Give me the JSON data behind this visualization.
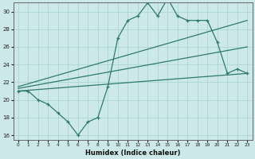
{
  "xlabel": "Humidex (Indice chaleur)",
  "bg_color": "#cce8e8",
  "line_color": "#2d7a6e",
  "grid_color": "#b0d8d8",
  "xlim": [
    -0.5,
    23.5
  ],
  "ylim": [
    15.5,
    31.0
  ],
  "xticks": [
    0,
    1,
    2,
    3,
    4,
    5,
    6,
    7,
    8,
    9,
    10,
    11,
    12,
    13,
    14,
    15,
    16,
    17,
    18,
    19,
    20,
    21,
    22,
    23
  ],
  "yticks": [
    16,
    18,
    20,
    22,
    24,
    26,
    28,
    30
  ],
  "main_x": [
    0,
    1,
    2,
    3,
    4,
    5,
    6,
    7,
    8,
    9,
    10,
    11,
    12,
    13,
    14,
    15,
    16,
    17,
    18,
    19,
    20,
    21,
    22,
    23
  ],
  "main_y": [
    21.0,
    21.0,
    20.0,
    19.5,
    18.5,
    17.5,
    16.0,
    17.5,
    18.0,
    21.5,
    27.0,
    29.0,
    29.5,
    31.0,
    29.5,
    31.5,
    29.5,
    29.0,
    29.0,
    29.0,
    26.5,
    23.0,
    23.5,
    23.0
  ],
  "line1_x": [
    0,
    23
  ],
  "line1_y": [
    21.0,
    23.0
  ],
  "line2_x": [
    0,
    23
  ],
  "line2_y": [
    21.3,
    26.0
  ],
  "line3_x": [
    0,
    23
  ],
  "line3_y": [
    21.5,
    29.0
  ]
}
